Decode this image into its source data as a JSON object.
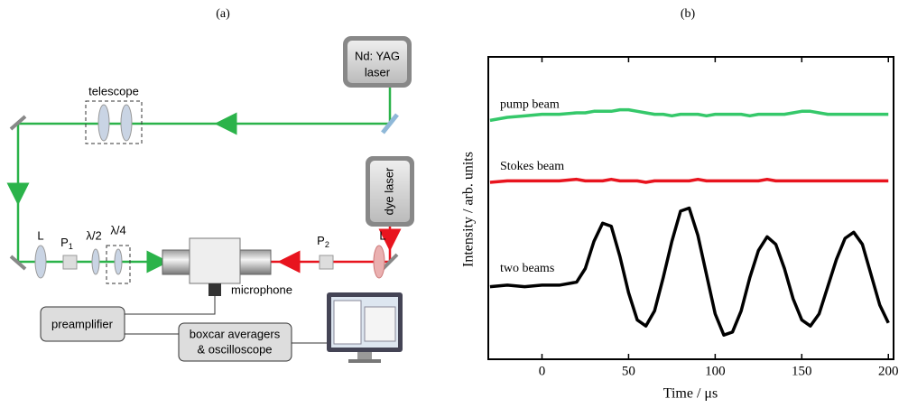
{
  "panel_a": {
    "label": "(a)",
    "laser": [
      "Nd: YAG",
      "laser"
    ],
    "telescope": "telescope",
    "dye_laser": "dye laser",
    "optics": [
      {
        "text": "L"
      },
      {
        "text": "P",
        "sub": "1"
      },
      {
        "text": "λ/2"
      },
      {
        "text": "λ/4"
      },
      {
        "text": "P",
        "sub": "2"
      },
      {
        "text": "L"
      }
    ],
    "microphone": "microphone",
    "preamplifier": "preamplifier",
    "boxcar": [
      "boxcar averagers",
      "& oscilloscope"
    ]
  },
  "chart_data": {
    "type": "line",
    "title": "(b)",
    "x_label": "Time / μs",
    "y_label": "Intensity / arb. units",
    "x": [
      -30,
      -20,
      -10,
      0,
      10,
      20,
      25,
      30,
      35,
      40,
      45,
      50,
      55,
      60,
      65,
      70,
      75,
      80,
      85,
      90,
      95,
      100,
      105,
      110,
      115,
      120,
      125,
      130,
      135,
      140,
      145,
      150,
      155,
      160,
      165,
      170,
      175,
      180,
      185,
      190,
      195,
      200
    ],
    "series": [
      {
        "name": "pump beam",
        "color": "#35c86a",
        "values": [
          7.9,
          8.0,
          8.05,
          8.1,
          8.1,
          8.15,
          8.15,
          8.2,
          8.2,
          8.2,
          8.25,
          8.25,
          8.2,
          8.15,
          8.1,
          8.1,
          8.05,
          8.1,
          8.1,
          8.1,
          8.05,
          8.1,
          8.1,
          8.1,
          8.1,
          8.05,
          8.1,
          8.1,
          8.1,
          8.1,
          8.15,
          8.2,
          8.2,
          8.15,
          8.1,
          8.1,
          8.1,
          8.1,
          8.1,
          8.1,
          8.1,
          8.1
        ]
      },
      {
        "name": "Stokes beam",
        "color": "#e8141e",
        "values": [
          5.85,
          5.9,
          5.9,
          5.9,
          5.9,
          5.95,
          5.9,
          5.9,
          5.9,
          5.95,
          5.9,
          5.9,
          5.9,
          5.85,
          5.9,
          5.9,
          5.9,
          5.9,
          5.9,
          5.95,
          5.9,
          5.9,
          5.9,
          5.9,
          5.9,
          5.9,
          5.9,
          5.95,
          5.9,
          5.9,
          5.9,
          5.9,
          5.9,
          5.9,
          5.9,
          5.9,
          5.9,
          5.9,
          5.9,
          5.9,
          5.9,
          5.9
        ]
      },
      {
        "name": "two beams",
        "color": "#000000",
        "values": [
          2.4,
          2.45,
          2.4,
          2.45,
          2.45,
          2.55,
          3.0,
          3.9,
          4.5,
          4.4,
          3.4,
          2.2,
          1.3,
          1.1,
          1.6,
          2.7,
          3.9,
          4.9,
          5.0,
          4.1,
          2.8,
          1.5,
          0.8,
          0.9,
          1.6,
          2.7,
          3.6,
          4.05,
          3.8,
          3.0,
          2.0,
          1.3,
          1.1,
          1.5,
          2.4,
          3.3,
          4.0,
          4.2,
          3.8,
          2.8,
          1.8,
          1.2
        ]
      }
    ],
    "xlim": [
      -31,
      203
    ],
    "ylim": [
      0,
      10
    ],
    "xticks": [
      0,
      50,
      100,
      150,
      200
    ]
  }
}
